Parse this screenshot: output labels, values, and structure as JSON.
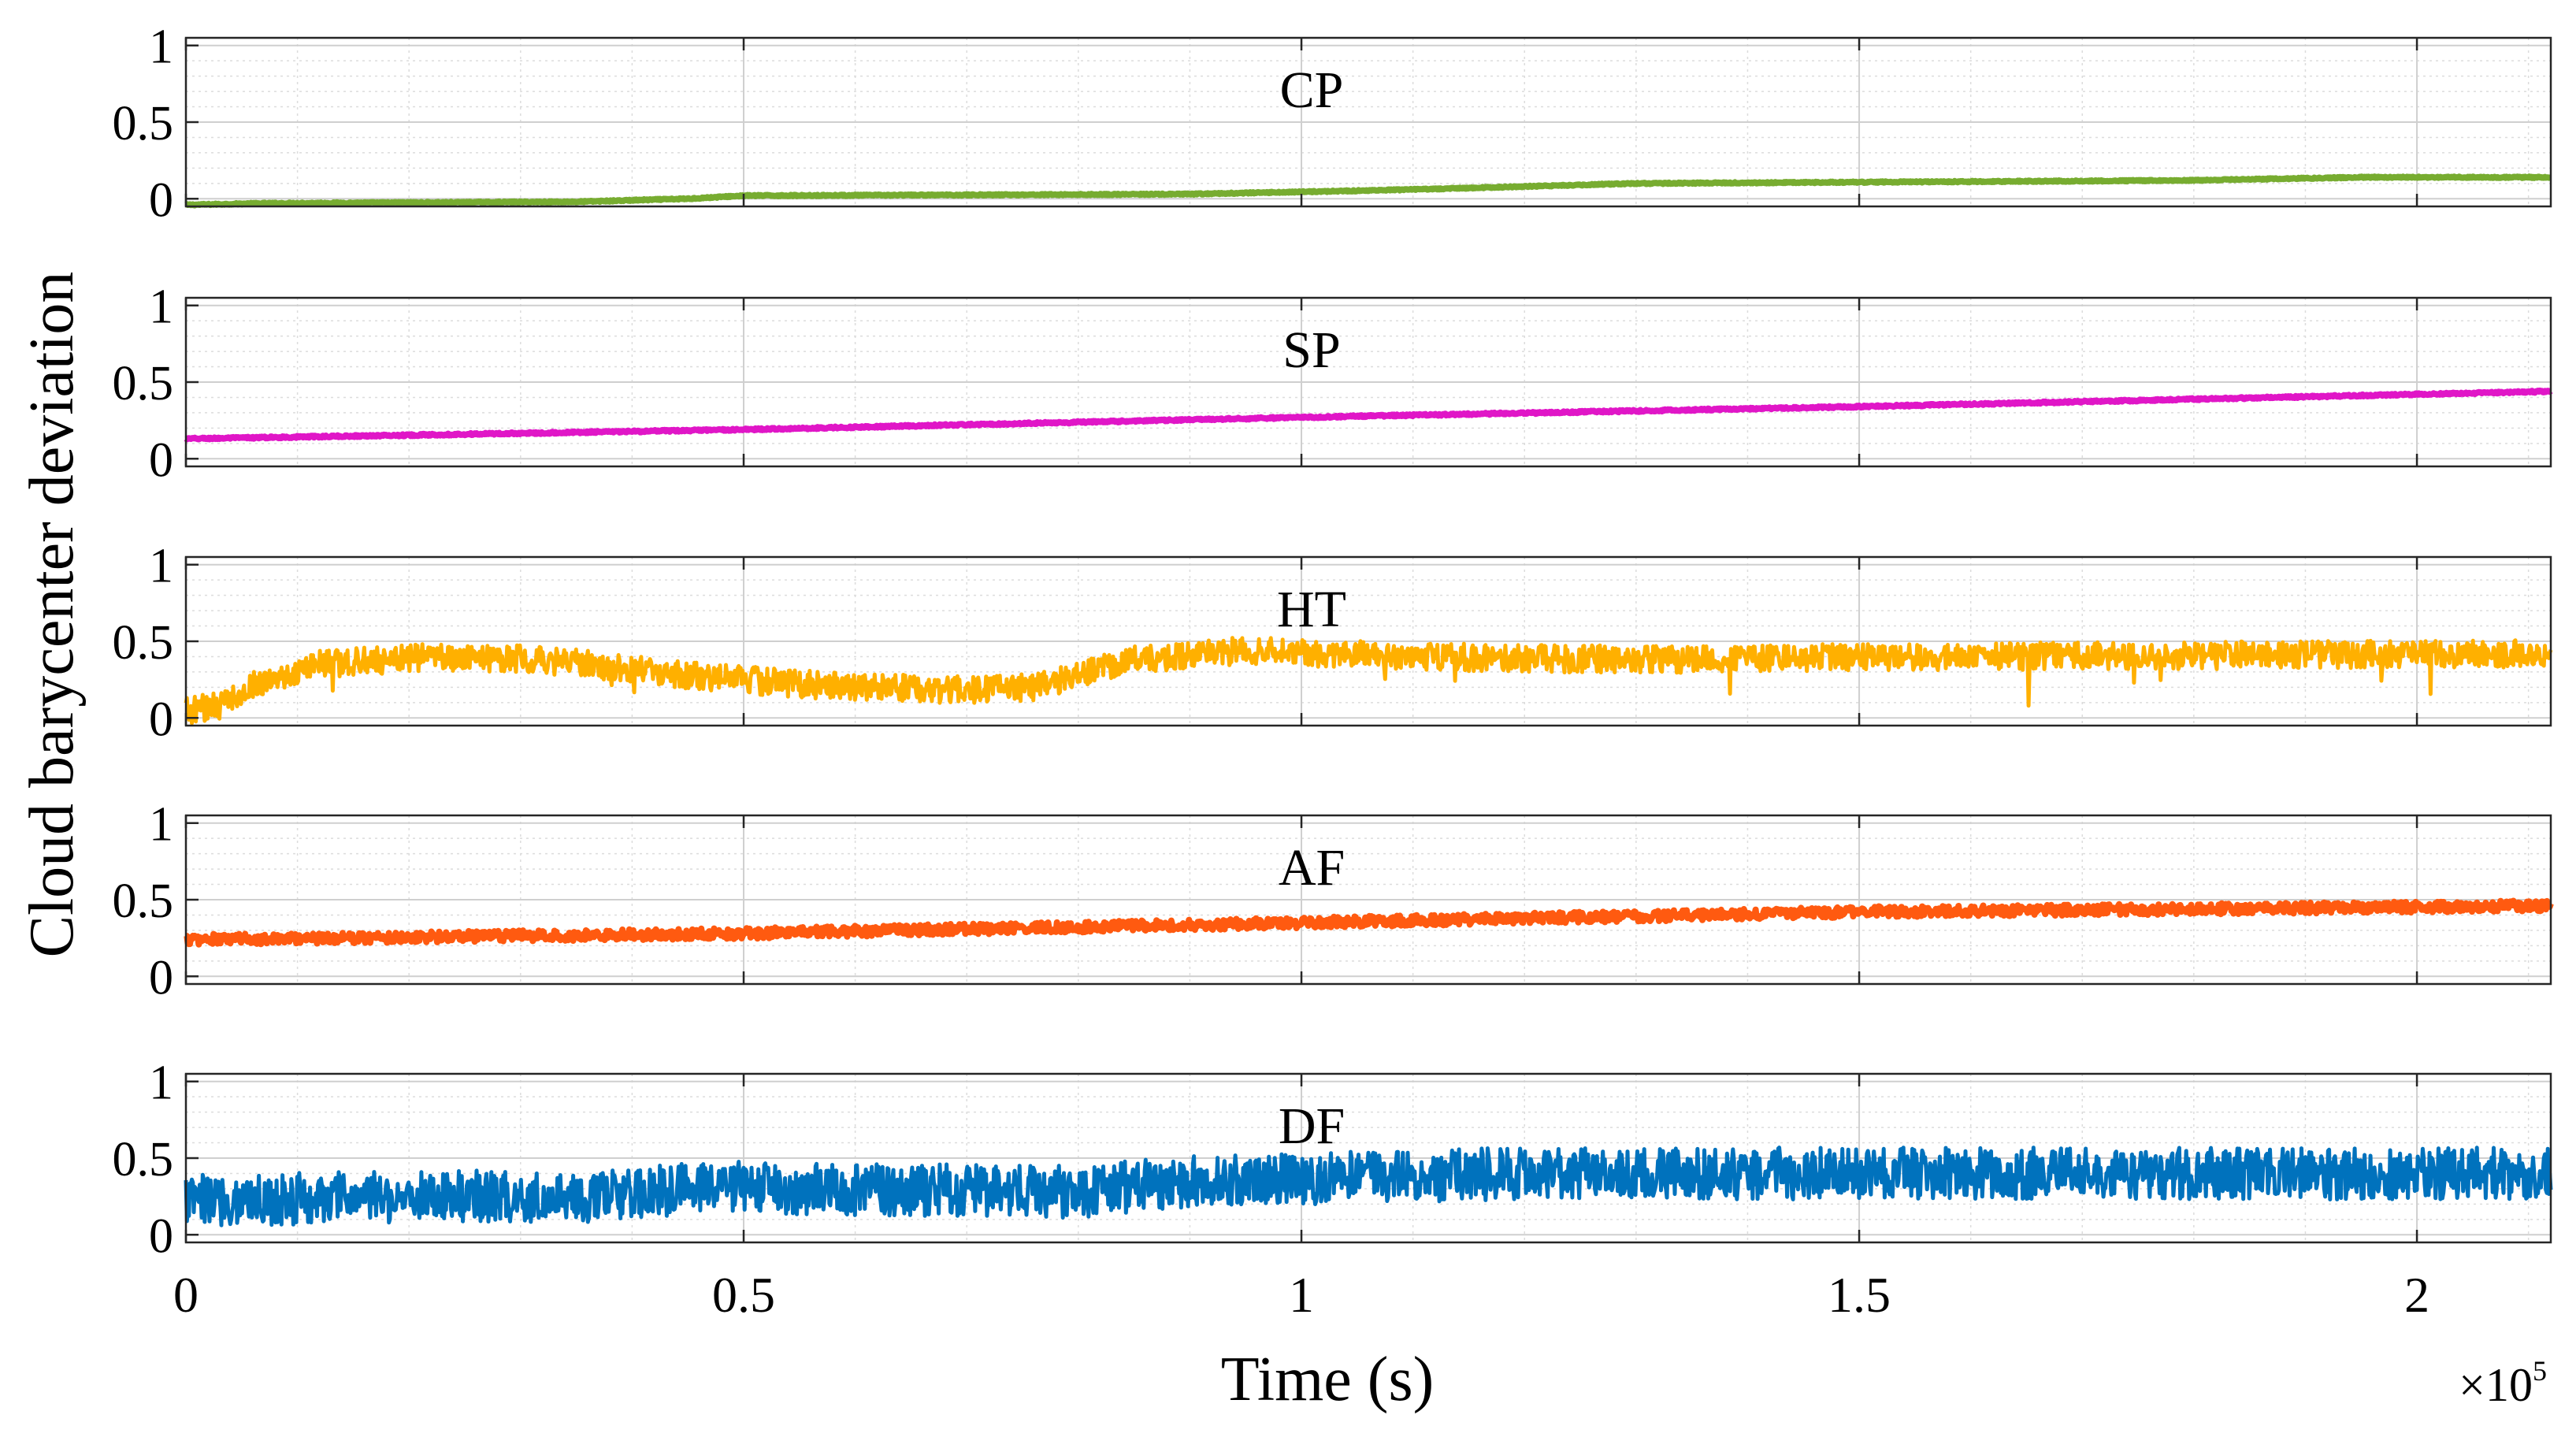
{
  "chart_data": {
    "type": "line",
    "layout": "5 vertically stacked subplots sharing the x-axis",
    "xlabel": "Time (s)",
    "ylabel": "Cloud barycenter deviation",
    "x_exponent_label": {
      "prefix": "×10",
      "power": "5"
    },
    "xlim": [
      0,
      2.12
    ],
    "x_ticks": [
      0,
      0.5,
      1,
      1.5,
      2
    ],
    "x_tick_labels": [
      "0",
      "0.5",
      "1",
      "1.5",
      "2"
    ],
    "ylim": [
      -0.05,
      1.05
    ],
    "y_ticks": [
      0,
      0.5,
      1
    ],
    "y_tick_labels": [
      "0",
      "0.5",
      "1"
    ],
    "grid": "on (major solid, minor dotted)",
    "series": [
      {
        "name": "CP",
        "color": "#77ac30",
        "noise": 0.004,
        "points": [
          [
            0,
            -0.04
          ],
          [
            0.07,
            -0.03
          ],
          [
            0.35,
            -0.02
          ],
          [
            0.45,
            0.0
          ],
          [
            0.5,
            0.02
          ],
          [
            0.9,
            0.03
          ],
          [
            1.1,
            0.06
          ],
          [
            1.3,
            0.1
          ],
          [
            1.55,
            0.11
          ],
          [
            1.8,
            0.12
          ],
          [
            1.95,
            0.14
          ],
          [
            2.12,
            0.14
          ]
        ]
      },
      {
        "name": "SP",
        "color": "#e016c7",
        "noise": 0.006,
        "points": [
          [
            0,
            0.13
          ],
          [
            0.5,
            0.19
          ],
          [
            1.0,
            0.27
          ],
          [
            1.5,
            0.34
          ],
          [
            2.12,
            0.44
          ]
        ]
      },
      {
        "name": "HT",
        "color": "#ffb000",
        "noise": 0.09,
        "points": [
          [
            0,
            0.05
          ],
          [
            0.03,
            0.08
          ],
          [
            0.06,
            0.22
          ],
          [
            0.12,
            0.35
          ],
          [
            0.22,
            0.4
          ],
          [
            0.32,
            0.38
          ],
          [
            0.45,
            0.28
          ],
          [
            0.55,
            0.22
          ],
          [
            0.7,
            0.18
          ],
          [
            0.76,
            0.2
          ],
          [
            0.85,
            0.38
          ],
          [
            0.95,
            0.44
          ],
          [
            1.1,
            0.4
          ],
          [
            1.3,
            0.38
          ],
          [
            1.6,
            0.4
          ],
          [
            2.12,
            0.42
          ]
        ]
      },
      {
        "name": "AF",
        "color": "#ff5a10",
        "noise": 0.035,
        "points": [
          [
            0,
            0.24
          ],
          [
            0.5,
            0.28
          ],
          [
            1.0,
            0.35
          ],
          [
            1.5,
            0.42
          ],
          [
            2.12,
            0.46
          ]
        ]
      },
      {
        "name": "DF",
        "color": "#0072bd",
        "noise": 0.17,
        "points": [
          [
            0,
            0.22
          ],
          [
            0.2,
            0.25
          ],
          [
            0.4,
            0.25
          ],
          [
            0.45,
            0.32
          ],
          [
            0.55,
            0.3
          ],
          [
            0.8,
            0.28
          ],
          [
            0.9,
            0.35
          ],
          [
            1.2,
            0.4
          ],
          [
            1.5,
            0.4
          ],
          [
            1.9,
            0.4
          ],
          [
            2.12,
            0.4
          ]
        ]
      }
    ]
  }
}
